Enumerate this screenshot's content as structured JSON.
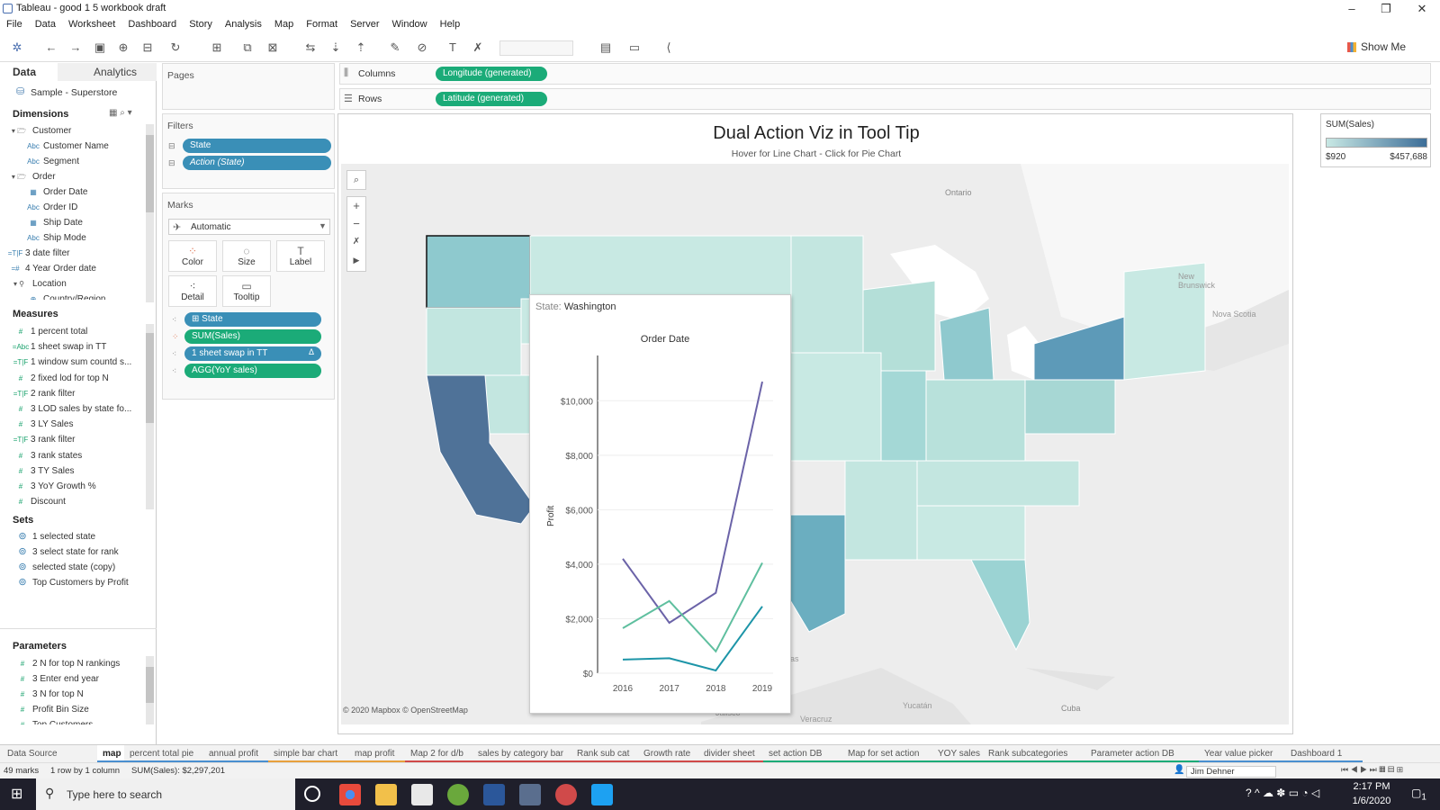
{
  "window": {
    "title": "Tableau - good 1 5 workbook draft",
    "min": "–",
    "max": "❐",
    "close": "✕"
  },
  "menu": [
    "File",
    "Data",
    "Worksheet",
    "Dashboard",
    "Story",
    "Analysis",
    "Map",
    "Format",
    "Server",
    "Window",
    "Help"
  ],
  "toolbar": {
    "show_me": "Show Me"
  },
  "left": {
    "tab_data": "Data",
    "tab_analytics": "Analytics",
    "datasource": "Sample - Superstore",
    "dimensions_label": "Dimensions",
    "dimensions": [
      {
        "label": "Customer",
        "type": "folder",
        "indent": 0
      },
      {
        "label": "Customer Name",
        "type": "Abc",
        "indent": 1
      },
      {
        "label": "Segment",
        "type": "Abc",
        "indent": 1
      },
      {
        "label": "Order",
        "type": "folder",
        "indent": 0
      },
      {
        "label": "Order Date",
        "type": "date",
        "indent": 1
      },
      {
        "label": "Order ID",
        "type": "Abc",
        "indent": 1
      },
      {
        "label": "Ship Date",
        "type": "date",
        "indent": 1
      },
      {
        "label": "Ship Mode",
        "type": "Abc",
        "indent": 1
      },
      {
        "label": "3 date filter",
        "type": "=T|F",
        "indent": 0
      },
      {
        "label": "4 Year Order date",
        "type": "=#",
        "indent": 0
      },
      {
        "label": "Location",
        "type": "loc",
        "indent": 0
      },
      {
        "label": "Country/Region",
        "type": "geo",
        "indent": 1
      }
    ],
    "measures_label": "Measures",
    "measures": [
      {
        "label": "1 percent total",
        "type": "#"
      },
      {
        "label": "1 sheet swap in TT",
        "type": "=Abc"
      },
      {
        "label": "1 window sum countd s...",
        "type": "=T|F"
      },
      {
        "label": "2 fixed lod for top N",
        "type": "#"
      },
      {
        "label": "2 rank filter",
        "type": "=T|F"
      },
      {
        "label": "3 LOD sales by state fo...",
        "type": "#"
      },
      {
        "label": "3 LY Sales",
        "type": "#"
      },
      {
        "label": "3 rank filter",
        "type": "=T|F"
      },
      {
        "label": "3 rank states",
        "type": "#"
      },
      {
        "label": "3 TY Sales",
        "type": "#"
      },
      {
        "label": "3 YoY Growth %",
        "type": "#"
      },
      {
        "label": "Discount",
        "type": "#"
      }
    ],
    "sets_label": "Sets",
    "sets": [
      "1 selected state",
      "3 select state for rank",
      "selected state (copy)",
      "Top Customers by Profit"
    ],
    "params_label": "Parameters",
    "params": [
      "2 N for top N rankings",
      "3 Enter end year",
      "3 N for top N",
      "Profit Bin Size",
      "Top Customers"
    ]
  },
  "shelves": {
    "pages_label": "Pages",
    "columns_label": "Columns",
    "rows_label": "Rows",
    "columns_pill": "Longitude (generated)",
    "rows_pill": "Latitude (generated)",
    "filters_label": "Filters",
    "filters": [
      "State",
      "Action (State)"
    ],
    "marks_label": "Marks",
    "marks_type": "Automatic",
    "mark_buttons": [
      "Color",
      "Size",
      "Label",
      "Detail",
      "Tooltip"
    ],
    "mark_pills": [
      {
        "label": "State",
        "color": "blue"
      },
      {
        "label": "SUM(Sales)",
        "color": "green"
      },
      {
        "label": "1 sheet swap in TT",
        "color": "blue"
      },
      {
        "label": "AGG(YoY sales)",
        "color": "green"
      }
    ]
  },
  "viz": {
    "title": "Dual Action Viz in Tool Tip",
    "subtitle": "Hover for Line Chart - Click for Pie Chart",
    "attribution": "© 2020 Mapbox © OpenStreetMap",
    "place_labels": [
      "Ontario",
      "New Brunswick",
      "Nova Scotia",
      "Cuba",
      "Yucatán",
      "Jalisco",
      "Veracruz",
      "pas"
    ]
  },
  "legend": {
    "title": "SUM(Sales)",
    "min": "$920",
    "max": "$457,688",
    "color_low": "#c8e8e4",
    "color_high": "#3d6e98"
  },
  "tooltip": {
    "state_label": "State:",
    "state_value": "Washington"
  },
  "chart_data": {
    "type": "line",
    "title": "Order Date",
    "ylabel": "Profit",
    "x": [
      "2016",
      "2017",
      "2018",
      "2019"
    ],
    "ylim": [
      0,
      11000
    ],
    "yticks": [
      "$0",
      "$2,000",
      "$4,000",
      "$6,000",
      "$8,000",
      "$10,000"
    ],
    "series": [
      {
        "values": [
          4200,
          1850,
          2950,
          10700
        ],
        "color": "#6b63a8"
      },
      {
        "values": [
          1650,
          2650,
          800,
          4050
        ],
        "color": "#5fbf9f"
      },
      {
        "values": [
          500,
          550,
          100,
          2450
        ],
        "color": "#1d95a8"
      }
    ]
  },
  "sheets": [
    "Data Source",
    "map",
    "percent total pie",
    "annual profit",
    "simple bar chart",
    "map profit",
    "Map 2 for d/b",
    "sales by category bar",
    "Rank sub cat",
    "Growth rate",
    "divider sheet",
    "set action DB",
    "Map for set action",
    "YOY sales",
    "Rank subcategories",
    "Parameter action DB",
    "Year value picker",
    "Dashboard 1"
  ],
  "status": {
    "marks": "49 marks",
    "rows": "1 row by 1 column",
    "sum": "SUM(Sales): $2,297,201",
    "user": "Jim Dehner"
  },
  "taskbar": {
    "search_placeholder": "Type here to search",
    "time": "2:17 PM",
    "date": "1/6/2020",
    "notif": "1"
  }
}
